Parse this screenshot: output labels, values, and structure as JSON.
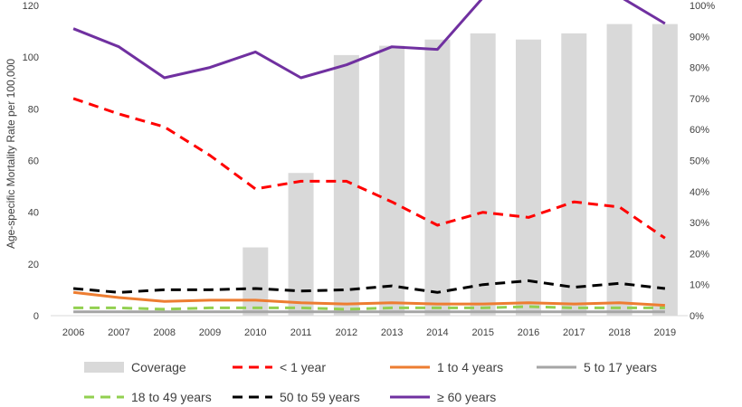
{
  "chart_data": {
    "type": "bar+line",
    "title": "",
    "categories": [
      "2006",
      "2007",
      "2008",
      "2009",
      "2010",
      "2011",
      "2012",
      "2013",
      "2014",
      "2015",
      "2016",
      "2017",
      "2018",
      "2019"
    ],
    "ylabel_left": "Age-specific Mortality Rate per 100,000",
    "ylim_left": [
      0,
      120
    ],
    "yticks_left": [
      "0",
      "20",
      "40",
      "60",
      "80",
      "100",
      "120"
    ],
    "ylim_right": [
      0,
      100
    ],
    "yticks_right": [
      "0%",
      "10%",
      "20%",
      "30%",
      "40%",
      "50%",
      "60%",
      "70%",
      "80%",
      "90%",
      "100%"
    ],
    "grid": false,
    "legend_position": "bottom",
    "bars": {
      "name": "Coverage",
      "axis": "right",
      "color": "#d9d9d9",
      "values": [
        null,
        null,
        null,
        null,
        22,
        46,
        84,
        87,
        89,
        91,
        89,
        91,
        94,
        94
      ]
    },
    "series": [
      {
        "name": "< 1 year",
        "axis": "left",
        "color": "#ff0000",
        "dash": "dashed",
        "values": [
          84,
          78,
          73,
          62,
          49,
          52,
          52,
          44,
          35,
          40,
          38,
          44,
          42,
          30
        ]
      },
      {
        "name": "1 to 4 years",
        "axis": "left",
        "color": "#ed7d31",
        "dash": "solid",
        "values": [
          9,
          7,
          5.5,
          6,
          6,
          5,
          4.5,
          5,
          4.5,
          4.5,
          5,
          4.5,
          5,
          4
        ]
      },
      {
        "name": "5 to 17 years",
        "axis": "left",
        "color": "#a5a5a5",
        "dash": "solid",
        "values": [
          1.5,
          1.5,
          1.5,
          1.5,
          1.5,
          1.5,
          1.5,
          1.5,
          1.5,
          1.5,
          1.5,
          1.5,
          1.5,
          1.5
        ]
      },
      {
        "name": "18 to 49 years",
        "axis": "left",
        "color": "#92d050",
        "dash": "dashed",
        "values": [
          3,
          3,
          2.5,
          3,
          3,
          3,
          2.5,
          3,
          3,
          3,
          3.5,
          3,
          3,
          3
        ]
      },
      {
        "name": "50 to 59 years",
        "axis": "left",
        "color": "#000000",
        "dash": "dashed",
        "values": [
          10.5,
          9,
          10,
          10,
          10.5,
          9.5,
          10,
          11.5,
          9,
          12,
          13.5,
          11,
          12.5,
          10.5
        ]
      },
      {
        "name": "≥ 60 years",
        "axis": "left",
        "color": "#7030a0",
        "dash": "solid",
        "values": [
          111,
          104,
          92,
          96,
          102,
          92,
          97,
          104,
          103,
          123,
          123.5,
          123.5,
          123.5,
          113
        ]
      }
    ]
  }
}
